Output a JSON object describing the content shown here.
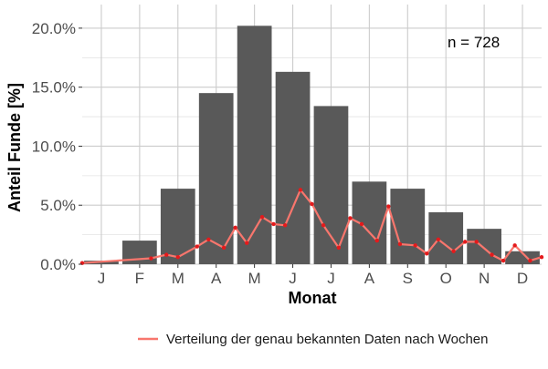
{
  "chart_data": {
    "type": "bar",
    "categories": [
      "J",
      "F",
      "M",
      "A",
      "M",
      "J",
      "J",
      "A",
      "S",
      "O",
      "N",
      "D"
    ],
    "values": [
      0.3,
      2.0,
      6.4,
      14.5,
      20.2,
      16.3,
      13.4,
      7.0,
      6.4,
      4.4,
      3.0,
      1.1
    ],
    "ylim": [
      0,
      22
    ],
    "y_ticks": [
      {
        "value": 0,
        "label": "0.0%"
      },
      {
        "value": 5,
        "label": "5.0%"
      },
      {
        "value": 10,
        "label": "10.0%"
      },
      {
        "value": 15,
        "label": "15.0%"
      },
      {
        "value": 20,
        "label": "20.0%"
      }
    ],
    "xlabel": "Monat",
    "ylabel": "Anteil Funde [%]",
    "annotation": "n = 728",
    "bar_color": "#595959",
    "line_series": {
      "name": "Verteilung der genau bekannten Daten nach Wochen",
      "color": "#f8766d",
      "point_color": "#e41a1c",
      "x": [
        0.0,
        1.8,
        2.2,
        2.5,
        3.0,
        3.3,
        3.7,
        4.0,
        4.3,
        4.7,
        5.0,
        5.3,
        5.7,
        6.0,
        6.3,
        6.7,
        7.0,
        7.3,
        7.7,
        8.0,
        8.3,
        8.7,
        9.0,
        9.3,
        9.7,
        10.0,
        10.3,
        10.7,
        11.0,
        11.3,
        11.7,
        12.0
      ],
      "values": [
        0.1,
        0.5,
        0.8,
        0.6,
        1.5,
        2.1,
        1.4,
        3.1,
        1.8,
        4.0,
        3.4,
        3.3,
        6.3,
        5.1,
        3.3,
        1.4,
        3.9,
        3.4,
        2.0,
        4.9,
        1.7,
        1.6,
        0.9,
        2.1,
        1.1,
        1.9,
        1.9,
        0.8,
        0.3,
        1.6,
        0.3,
        0.6
      ]
    }
  }
}
